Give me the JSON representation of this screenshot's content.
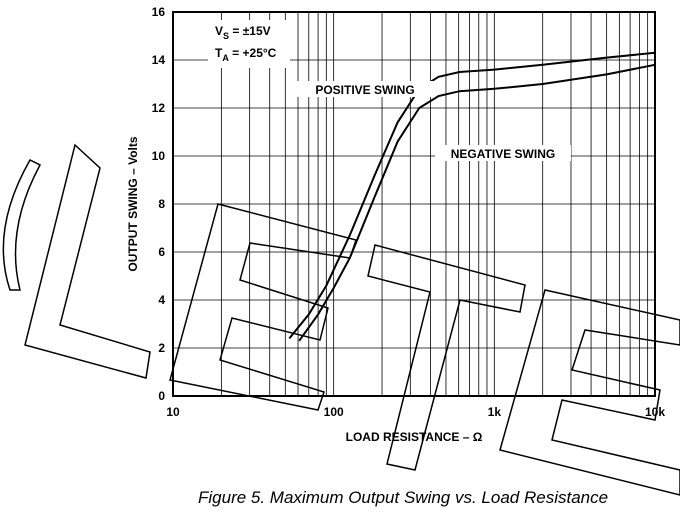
{
  "chart_data": {
    "type": "line",
    "xscale": "log",
    "xlabel": "LOAD RESISTANCE – Ω",
    "ylabel": "OUTPUT SWING – Volts",
    "caption": "Figure 5.  Maximum Output Swing vs. Load Resistance",
    "conditions": [
      {
        "main": "V",
        "sub": "S",
        "rest": " = ±15V"
      },
      {
        "main": "T",
        "sub": "A",
        "rest": " = +25°C"
      }
    ],
    "xlim": [
      10,
      10000
    ],
    "ylim": [
      0,
      16
    ],
    "xticks": [
      10,
      100,
      {
        "value": 1000,
        "label": "1k"
      },
      {
        "value": 10000,
        "label": "10k"
      }
    ],
    "yticks": [
      0,
      2,
      4,
      6,
      8,
      10,
      12,
      14,
      16
    ],
    "grid": true,
    "series": [
      {
        "name": "POSITIVE SWING",
        "color": "#000000",
        "x": [
          53,
          70,
          90,
          126,
          180,
          250,
          341,
          450,
          607,
          1000,
          2000,
          5000,
          10000
        ],
        "values": [
          2.4,
          3.4,
          4.6,
          6.7,
          9.2,
          11.4,
          12.8,
          13.3,
          13.5,
          13.6,
          13.8,
          14.1,
          14.3
        ]
      },
      {
        "name": "NEGATIVE SWING",
        "color": "#000000",
        "x": [
          61,
          80,
          100,
          126,
          180,
          250,
          341,
          450,
          607,
          1000,
          2000,
          5000,
          10000
        ],
        "values": [
          2.3,
          3.4,
          4.5,
          5.75,
          8.3,
          10.6,
          12.0,
          12.5,
          12.7,
          12.8,
          13.0,
          13.4,
          13.8
        ]
      }
    ]
  }
}
